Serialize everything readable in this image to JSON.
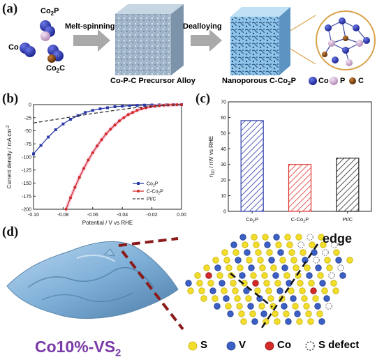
{
  "panel_a": {
    "label": "(a)",
    "atoms": {
      "co2p": "Co2P",
      "co": "Co",
      "co2c": "Co2C"
    },
    "step1": "Melt-spinning",
    "step2": "Dealloying",
    "cube1_caption": "Co-P-C Precursor Alloy",
    "cube2_caption": "Nanoporous C-Co2P",
    "legend": [
      {
        "label": "Co",
        "color": "#2b3aa8"
      },
      {
        "label": "P",
        "color": "#d7b0d6"
      },
      {
        "label": "C",
        "color": "#8b4a10"
      }
    ]
  },
  "panel_b": {
    "label": "(b)",
    "ylabel": "Current density / mA cm-2",
    "xlabel": "Potential / V vs RHE",
    "xticks": [
      "-0.10",
      "-0.08",
      "-0.06",
      "-0.04",
      "-0.02",
      "0.00"
    ],
    "yticks": [
      "0",
      "-25",
      "-50",
      "-75",
      "-100",
      "-125",
      "-150",
      "-175",
      "-200"
    ],
    "legend": [
      "Co2P",
      "C-Co2P",
      "Pt/C"
    ]
  },
  "panel_c": {
    "label": "(c)",
    "ylabel": "η10 / mV vs RHE",
    "yticks": [
      "0",
      "10",
      "20",
      "30",
      "40",
      "50",
      "60",
      "70"
    ],
    "categories": [
      "Co2P",
      "C-Co2P",
      "Pt/C"
    ]
  },
  "panel_d": {
    "label": "(d)",
    "title": "Co10%-VS2",
    "edge_label": "edge",
    "legend": [
      {
        "label": "S",
        "color": "#f1dd2a"
      },
      {
        "label": "V",
        "color": "#3b5fc4"
      },
      {
        "label": "Co",
        "color": "#d42a2a"
      },
      {
        "label": "S defect",
        "color": "#ffffff"
      }
    ]
  },
  "chart_data": [
    {
      "type": "line",
      "xlabel": "Potential / V vs RHE",
      "ylabel": "Current density / mA cm-2",
      "xlim": [
        -0.1,
        0.0
      ],
      "ylim": [
        -200,
        0
      ],
      "series": [
        {
          "name": "Co2P",
          "color": "#2b3aa8",
          "x": [
            -0.1,
            -0.095,
            -0.09,
            -0.085,
            -0.08,
            -0.075,
            -0.07,
            -0.065,
            -0.06,
            -0.055,
            -0.05,
            -0.045,
            -0.04,
            -0.035,
            -0.03,
            -0.025,
            -0.02,
            -0.015,
            -0.01,
            -0.005,
            0.0
          ],
          "y": [
            -94,
            -78,
            -62,
            -48,
            -37,
            -28,
            -21,
            -15,
            -11,
            -8,
            -6,
            -4,
            -3,
            -2,
            -1.5,
            -1,
            -0.7,
            -0.5,
            -0.3,
            -0.1,
            0
          ]
        },
        {
          "name": "C-Co2P",
          "color": "#d22a2a",
          "x": [
            -0.078,
            -0.075,
            -0.072,
            -0.069,
            -0.066,
            -0.063,
            -0.06,
            -0.057,
            -0.054,
            -0.051,
            -0.048,
            -0.045,
            -0.042,
            -0.039,
            -0.036,
            -0.033,
            -0.03,
            -0.027,
            -0.024,
            -0.021,
            -0.018,
            -0.015,
            -0.012,
            -0.009,
            -0.006,
            -0.003,
            0.0
          ],
          "y": [
            -200,
            -178,
            -158,
            -139,
            -122,
            -106,
            -92,
            -79,
            -67,
            -56,
            -47,
            -39,
            -31,
            -25,
            -19,
            -15,
            -11,
            -8,
            -6,
            -4,
            -3,
            -2,
            -1.2,
            -0.7,
            -0.3,
            -0.1,
            0
          ]
        },
        {
          "name": "Pt/C",
          "color": "#333333",
          "dashed": true,
          "x": [
            -0.1,
            -0.08,
            -0.06,
            -0.04,
            -0.03,
            -0.02,
            -0.01,
            0.0
          ],
          "y": [
            -35,
            -26,
            -17,
            -9,
            -5.5,
            -3,
            -1.2,
            0
          ]
        }
      ]
    },
    {
      "type": "bar",
      "ylabel": "η10 / mV vs RHE",
      "ylim": [
        0,
        70
      ],
      "categories": [
        "Co2P",
        "C-Co2P",
        "Pt/C"
      ],
      "values": [
        58,
        30,
        34
      ],
      "colors": [
        "#2b3aa8",
        "#e0302b",
        "#222222"
      ]
    }
  ]
}
